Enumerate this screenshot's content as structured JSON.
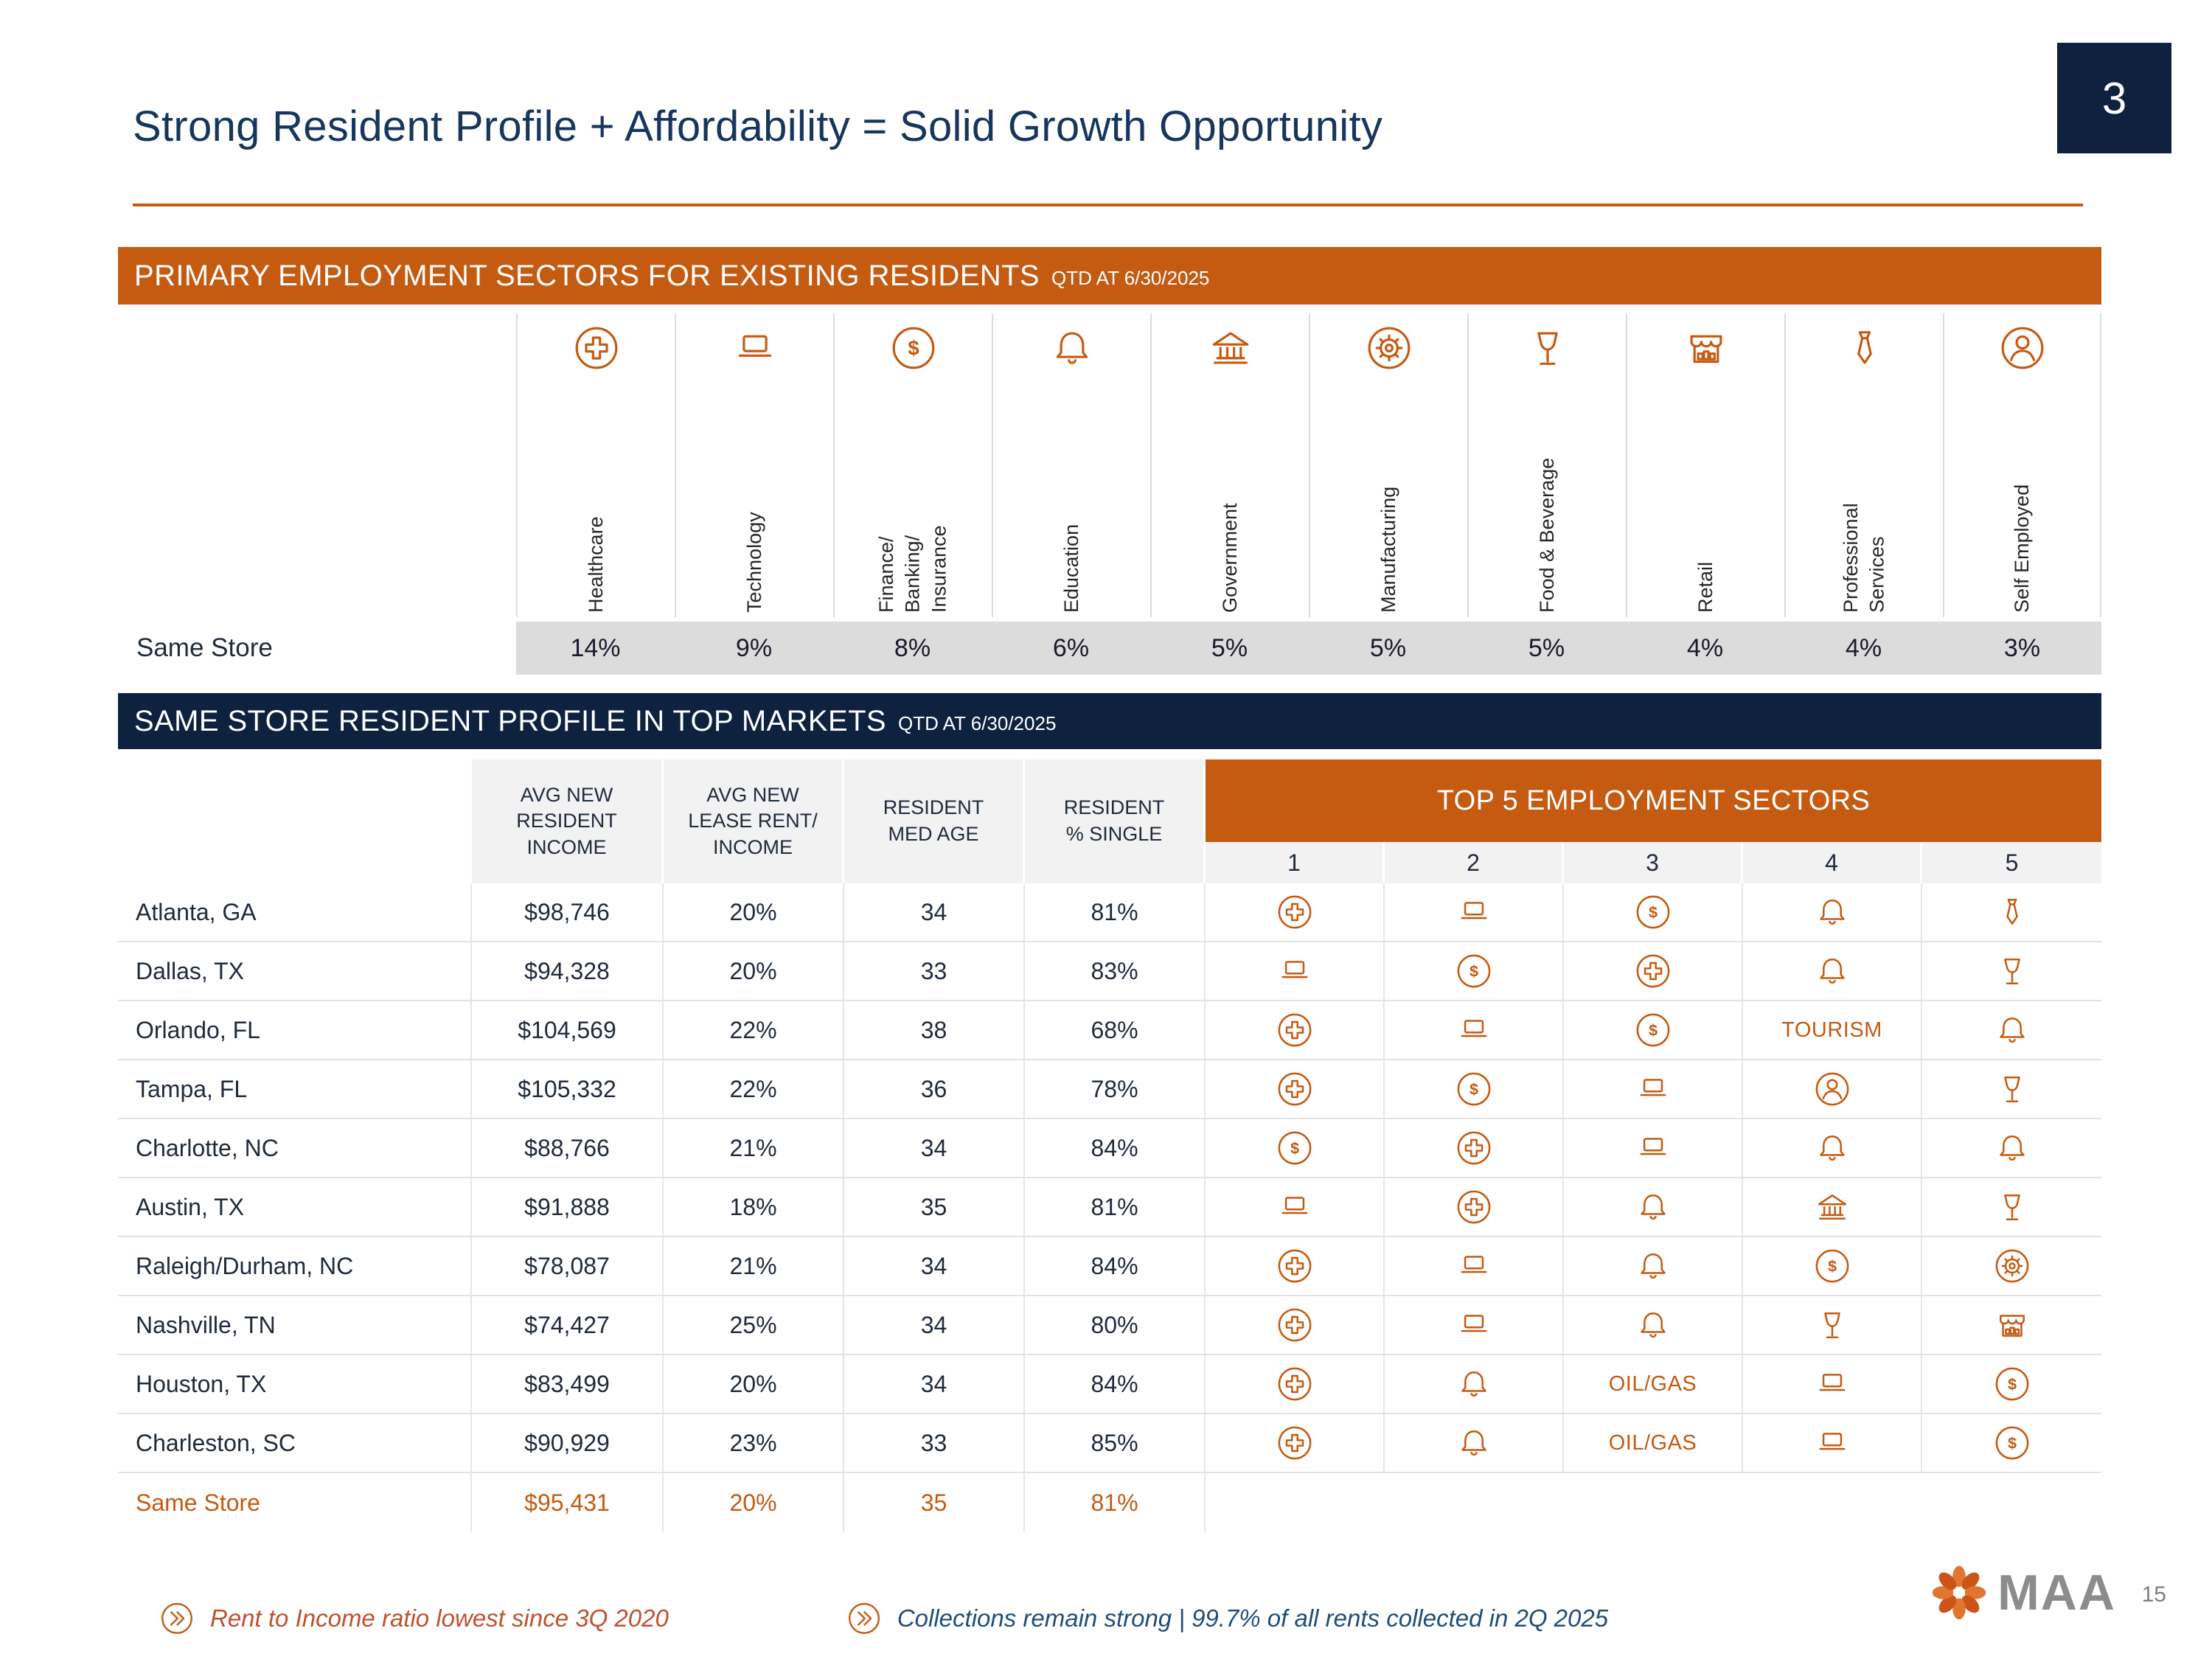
{
  "page": {
    "slide_number": "3",
    "footer_number": "15"
  },
  "title": "Strong Resident Profile + Affordability = Solid Growth Opportunity",
  "colors": {
    "orange": "#C55A11",
    "navy": "#0E2240",
    "title-navy": "#17365D",
    "gray-row": "#DCDCDC",
    "header-gray": "#F2F2F2",
    "accent-red": "#C0512E",
    "blue": "#1F4E79",
    "logo-gray": "#8C8C8C"
  },
  "employment": {
    "banner": "PRIMARY EMPLOYMENT SECTORS FOR EXISTING RESIDENTS",
    "banner_suffix": "QTD AT 6/30/2025",
    "row_label": "Same Store",
    "sectors": [
      {
        "label": "Healthcare",
        "icon": "healthcare",
        "value": "14%"
      },
      {
        "label": "Technology",
        "icon": "technology",
        "value": "9%"
      },
      {
        "label": "Finance/\nBanking/\nInsurance",
        "icon": "finance",
        "value": "8%"
      },
      {
        "label": "Education",
        "icon": "education",
        "value": "6%"
      },
      {
        "label": "Government",
        "icon": "government",
        "value": "5%"
      },
      {
        "label": "Manufacturing",
        "icon": "manufacturing",
        "value": "5%"
      },
      {
        "label": "Food & Beverage",
        "icon": "food-beverage",
        "value": "5%"
      },
      {
        "label": "Retail",
        "icon": "retail",
        "value": "4%"
      },
      {
        "label": "Professional\nServices",
        "icon": "professional-services",
        "value": "4%"
      },
      {
        "label": "Self Employed",
        "icon": "self-employed",
        "value": "3%"
      }
    ]
  },
  "profile": {
    "banner": "SAME STORE RESIDENT PROFILE IN TOP MARKETS",
    "banner_suffix": "QTD AT 6/30/2025",
    "columns": [
      "AVG NEW\nRESIDENT\nINCOME",
      "AVG NEW\nLEASE RENT/\nINCOME",
      "RESIDENT\nMED AGE",
      "RESIDENT\n% SINGLE"
    ],
    "top5_header": "TOP 5 EMPLOYMENT SECTORS",
    "top5_ranks": [
      "1",
      "2",
      "3",
      "4",
      "5"
    ],
    "rows": [
      {
        "market": "Atlanta, GA",
        "income": "$98,746",
        "rent_income": "20%",
        "med_age": "34",
        "single": "81%",
        "sectors": [
          {
            "icon": "healthcare"
          },
          {
            "icon": "technology"
          },
          {
            "icon": "finance"
          },
          {
            "icon": "education"
          },
          {
            "icon": "professional-services"
          }
        ]
      },
      {
        "market": "Dallas, TX",
        "income": "$94,328",
        "rent_income": "20%",
        "med_age": "33",
        "single": "83%",
        "sectors": [
          {
            "icon": "technology"
          },
          {
            "icon": "finance"
          },
          {
            "icon": "healthcare"
          },
          {
            "icon": "education"
          },
          {
            "icon": "food-beverage"
          }
        ]
      },
      {
        "market": "Orlando, FL",
        "income": "$104,569",
        "rent_income": "22%",
        "med_age": "38",
        "single": "68%",
        "sectors": [
          {
            "icon": "healthcare"
          },
          {
            "icon": "technology"
          },
          {
            "icon": "finance"
          },
          {
            "text": "TOURISM"
          },
          {
            "icon": "education"
          }
        ]
      },
      {
        "market": "Tampa, FL",
        "income": "$105,332",
        "rent_income": "22%",
        "med_age": "36",
        "single": "78%",
        "sectors": [
          {
            "icon": "healthcare"
          },
          {
            "icon": "finance"
          },
          {
            "icon": "technology"
          },
          {
            "icon": "self-employed"
          },
          {
            "icon": "food-beverage"
          }
        ]
      },
      {
        "market": "Charlotte, NC",
        "income": "$88,766",
        "rent_income": "21%",
        "med_age": "34",
        "single": "84%",
        "sectors": [
          {
            "icon": "finance"
          },
          {
            "icon": "healthcare"
          },
          {
            "icon": "technology"
          },
          {
            "icon": "education"
          },
          {
            "icon": "education"
          }
        ]
      },
      {
        "market": "Austin, TX",
        "income": "$91,888",
        "rent_income": "18%",
        "med_age": "35",
        "single": "81%",
        "sectors": [
          {
            "icon": "technology"
          },
          {
            "icon": "healthcare"
          },
          {
            "icon": "education"
          },
          {
            "icon": "government"
          },
          {
            "icon": "food-beverage"
          }
        ]
      },
      {
        "market": "Raleigh/Durham, NC",
        "income": "$78,087",
        "rent_income": "21%",
        "med_age": "34",
        "single": "84%",
        "sectors": [
          {
            "icon": "healthcare"
          },
          {
            "icon": "technology"
          },
          {
            "icon": "education"
          },
          {
            "icon": "finance"
          },
          {
            "icon": "manufacturing"
          }
        ]
      },
      {
        "market": "Nashville, TN",
        "income": "$74,427",
        "rent_income": "25%",
        "med_age": "34",
        "single": "80%",
        "sectors": [
          {
            "icon": "healthcare"
          },
          {
            "icon": "technology"
          },
          {
            "icon": "education"
          },
          {
            "icon": "food-beverage"
          },
          {
            "icon": "retail"
          }
        ]
      },
      {
        "market": "Houston, TX",
        "income": "$83,499",
        "rent_income": "20%",
        "med_age": "34",
        "single": "84%",
        "sectors": [
          {
            "icon": "healthcare"
          },
          {
            "icon": "education"
          },
          {
            "text": "OIL/GAS"
          },
          {
            "icon": "technology"
          },
          {
            "icon": "finance"
          }
        ]
      },
      {
        "market": "Charleston, SC",
        "income": "$90,929",
        "rent_income": "23%",
        "med_age": "33",
        "single": "85%",
        "sectors": [
          {
            "icon": "healthcare"
          },
          {
            "icon": "education"
          },
          {
            "text": "OIL/GAS"
          },
          {
            "icon": "technology"
          },
          {
            "icon": "finance"
          }
        ]
      },
      {
        "market": "Same Store",
        "income": "$95,431",
        "rent_income": "20%",
        "med_age": "35",
        "single": "81%",
        "sectors": [],
        "highlight": true
      }
    ]
  },
  "footnotes": [
    {
      "text": "Rent to Income ratio lowest since 3Q 2020",
      "tone": "accent"
    },
    {
      "text": "Collections remain strong | 99.7% of all rents collected in 2Q 2025",
      "tone": "blue"
    }
  ],
  "logo": {
    "text": "MAA"
  }
}
